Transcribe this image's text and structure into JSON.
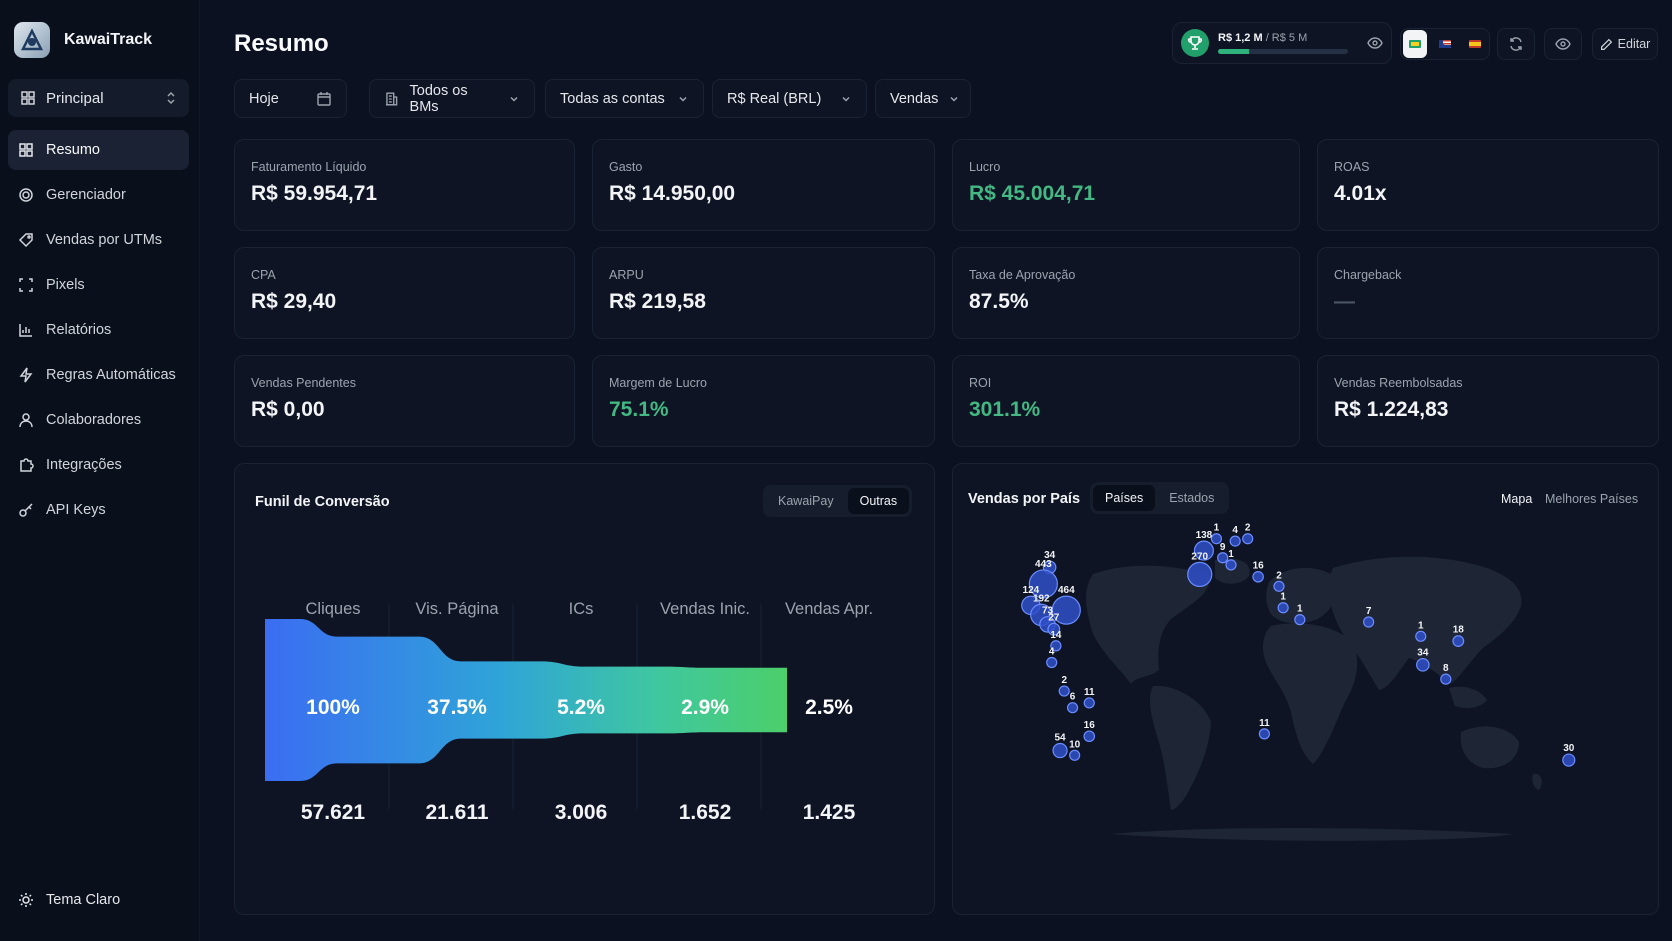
{
  "app": {
    "name": "KawaiTrack"
  },
  "sidebar": {
    "workspace": "Principal",
    "items": [
      {
        "label": "Resumo",
        "icon": "grid-icon",
        "active": true
      },
      {
        "label": "Gerenciador",
        "icon": "target-icon"
      },
      {
        "label": "Vendas por UTMs",
        "icon": "tag-icon"
      },
      {
        "label": "Pixels",
        "icon": "scan-icon"
      },
      {
        "label": "Relatórios",
        "icon": "bar-chart-icon"
      },
      {
        "label": "Regras Automáticas",
        "icon": "bolt-icon"
      },
      {
        "label": "Colaboradores",
        "icon": "users-icon"
      },
      {
        "label": "Integrações",
        "icon": "puzzle-icon"
      },
      {
        "label": "API Keys",
        "icon": "key-icon"
      }
    ],
    "theme_toggle": "Tema Claro"
  },
  "header": {
    "title": "Resumo",
    "goal": {
      "current": "R$ 1,2 M",
      "target": " / R$ 5 M",
      "progress": 0.24
    },
    "edit_label": "Editar"
  },
  "filters": {
    "date": "Hoje",
    "bms": "Todos os BMs",
    "accounts": "Todas as contas",
    "currency": "R$ Real (BRL)",
    "metric": "Vendas"
  },
  "metrics": [
    {
      "label": "Faturamento Líquido",
      "value": "R$ 59.954,71",
      "tone": "default"
    },
    {
      "label": "Gasto",
      "value": "R$ 14.950,00",
      "tone": "default"
    },
    {
      "label": "Lucro",
      "value": "R$ 45.004,71",
      "tone": "green"
    },
    {
      "label": "ROAS",
      "value": "4.01x",
      "tone": "default"
    },
    {
      "label": "CPA",
      "value": "R$ 29,40",
      "tone": "default"
    },
    {
      "label": "ARPU",
      "value": "R$ 219,58",
      "tone": "default"
    },
    {
      "label": "Taxa de Aprovação",
      "value": "87.5%",
      "tone": "default"
    },
    {
      "label": "Chargeback",
      "value": "—",
      "tone": "dim"
    },
    {
      "label": "Vendas Pendentes",
      "value": "R$ 0,00",
      "tone": "default"
    },
    {
      "label": "Margem de Lucro",
      "value": "75.1%",
      "tone": "green"
    },
    {
      "label": "ROI",
      "value": "301.1%",
      "tone": "green"
    },
    {
      "label": "Vendas Reembolsadas",
      "value": "R$ 1.224,83",
      "tone": "default"
    }
  ],
  "funnel": {
    "title": "Funil de Conversão",
    "tabs": [
      "KawaiPay",
      "Outras"
    ],
    "active_tab": 1,
    "stages": [
      {
        "label": "Cliques",
        "percent": "100%",
        "count": "57.621"
      },
      {
        "label": "Vis. Página",
        "percent": "37.5%",
        "count": "21.611"
      },
      {
        "label": "ICs",
        "percent": "5.2%",
        "count": "3.006"
      },
      {
        "label": "Vendas Inic.",
        "percent": "2.9%",
        "count": "1.652"
      },
      {
        "label": "Vendas Apr.",
        "percent": "2.5%",
        "count": "1.425"
      }
    ]
  },
  "map": {
    "title": "Vendas por País",
    "tabs": [
      "Países",
      "Estados"
    ],
    "active_tab": 0,
    "views": [
      "Mapa",
      "Melhores Países"
    ],
    "active_view": 0,
    "markers": [
      {
        "label": "34",
        "lon": -75,
        "lat": 44
      },
      {
        "label": "443",
        "lon": -78,
        "lat": 37
      },
      {
        "label": "124",
        "lon": -84,
        "lat": 28
      },
      {
        "label": "464",
        "lon": -67,
        "lat": 26
      },
      {
        "label": "192",
        "lon": -79,
        "lat": 24
      },
      {
        "label": "73",
        "lon": -76,
        "lat": 20
      },
      {
        "label": "27",
        "lon": -73,
        "lat": 18
      },
      {
        "label": "14",
        "lon": -72,
        "lat": 11
      },
      {
        "label": "4",
        "lon": -74,
        "lat": 4
      },
      {
        "label": "2",
        "lon": -68,
        "lat": -8
      },
      {
        "label": "11",
        "lon": -56,
        "lat": -13
      },
      {
        "label": "6",
        "lon": -64,
        "lat": -15
      },
      {
        "label": "16",
        "lon": -56,
        "lat": -27
      },
      {
        "label": "54",
        "lon": -70,
        "lat": -33
      },
      {
        "label": "10",
        "lon": -63,
        "lat": -35
      },
      {
        "label": "1",
        "lon": 5,
        "lat": 56
      },
      {
        "label": "4",
        "lon": 14,
        "lat": 55
      },
      {
        "label": "2",
        "lon": 20,
        "lat": 56
      },
      {
        "label": "138",
        "lon": -1,
        "lat": 51
      },
      {
        "label": "9",
        "lon": 8,
        "lat": 48
      },
      {
        "label": "270",
        "lon": -3,
        "lat": 41
      },
      {
        "label": "1",
        "lon": 12,
        "lat": 45
      },
      {
        "label": "16",
        "lon": 25,
        "lat": 40
      },
      {
        "label": "2",
        "lon": 35,
        "lat": 36
      },
      {
        "label": "1",
        "lon": 37,
        "lat": 27
      },
      {
        "label": "1",
        "lon": 45,
        "lat": 22
      },
      {
        "label": "7",
        "lon": 78,
        "lat": 21
      },
      {
        "label": "1",
        "lon": 103,
        "lat": 15
      },
      {
        "label": "18",
        "lon": 121,
        "lat": 13
      },
      {
        "label": "34",
        "lon": 104,
        "lat": 3
      },
      {
        "label": "8",
        "lon": 115,
        "lat": -3
      },
      {
        "label": "11",
        "lon": 28,
        "lat": -26
      },
      {
        "label": "30",
        "lon": 174,
        "lat": -37
      }
    ]
  }
}
